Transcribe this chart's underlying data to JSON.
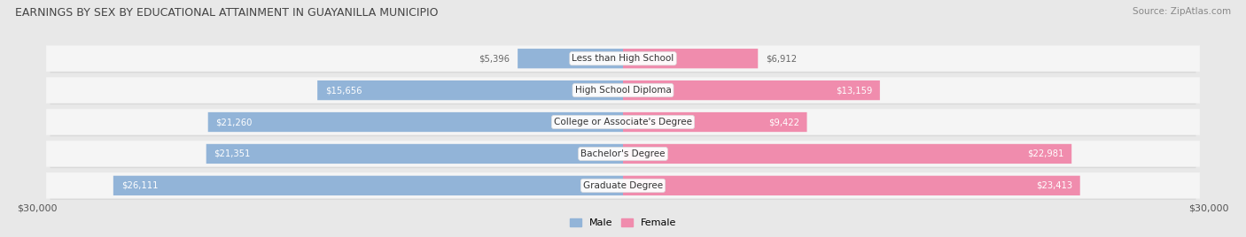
{
  "title": "EARNINGS BY SEX BY EDUCATIONAL ATTAINMENT IN GUAYANILLA MUNICIPIO",
  "source": "Source: ZipAtlas.com",
  "categories": [
    "Less than High School",
    "High School Diploma",
    "College or Associate's Degree",
    "Bachelor's Degree",
    "Graduate Degree"
  ],
  "male_values": [
    5396,
    15656,
    21260,
    21351,
    26111
  ],
  "female_values": [
    6912,
    13159,
    9422,
    22981,
    23413
  ],
  "male_color": "#92b4d8",
  "female_color": "#f08cad",
  "label_color_inside": "#ffffff",
  "label_color_outside": "#666666",
  "max_val": 30000,
  "bg_color": "#e8e8e8",
  "row_color": "#f5f5f5",
  "row_shadow_color": "#cccccc",
  "title_fontsize": 9.0,
  "source_fontsize": 7.5,
  "bar_height": 0.62,
  "figsize": [
    14.06,
    2.68
  ],
  "dpi": 100
}
